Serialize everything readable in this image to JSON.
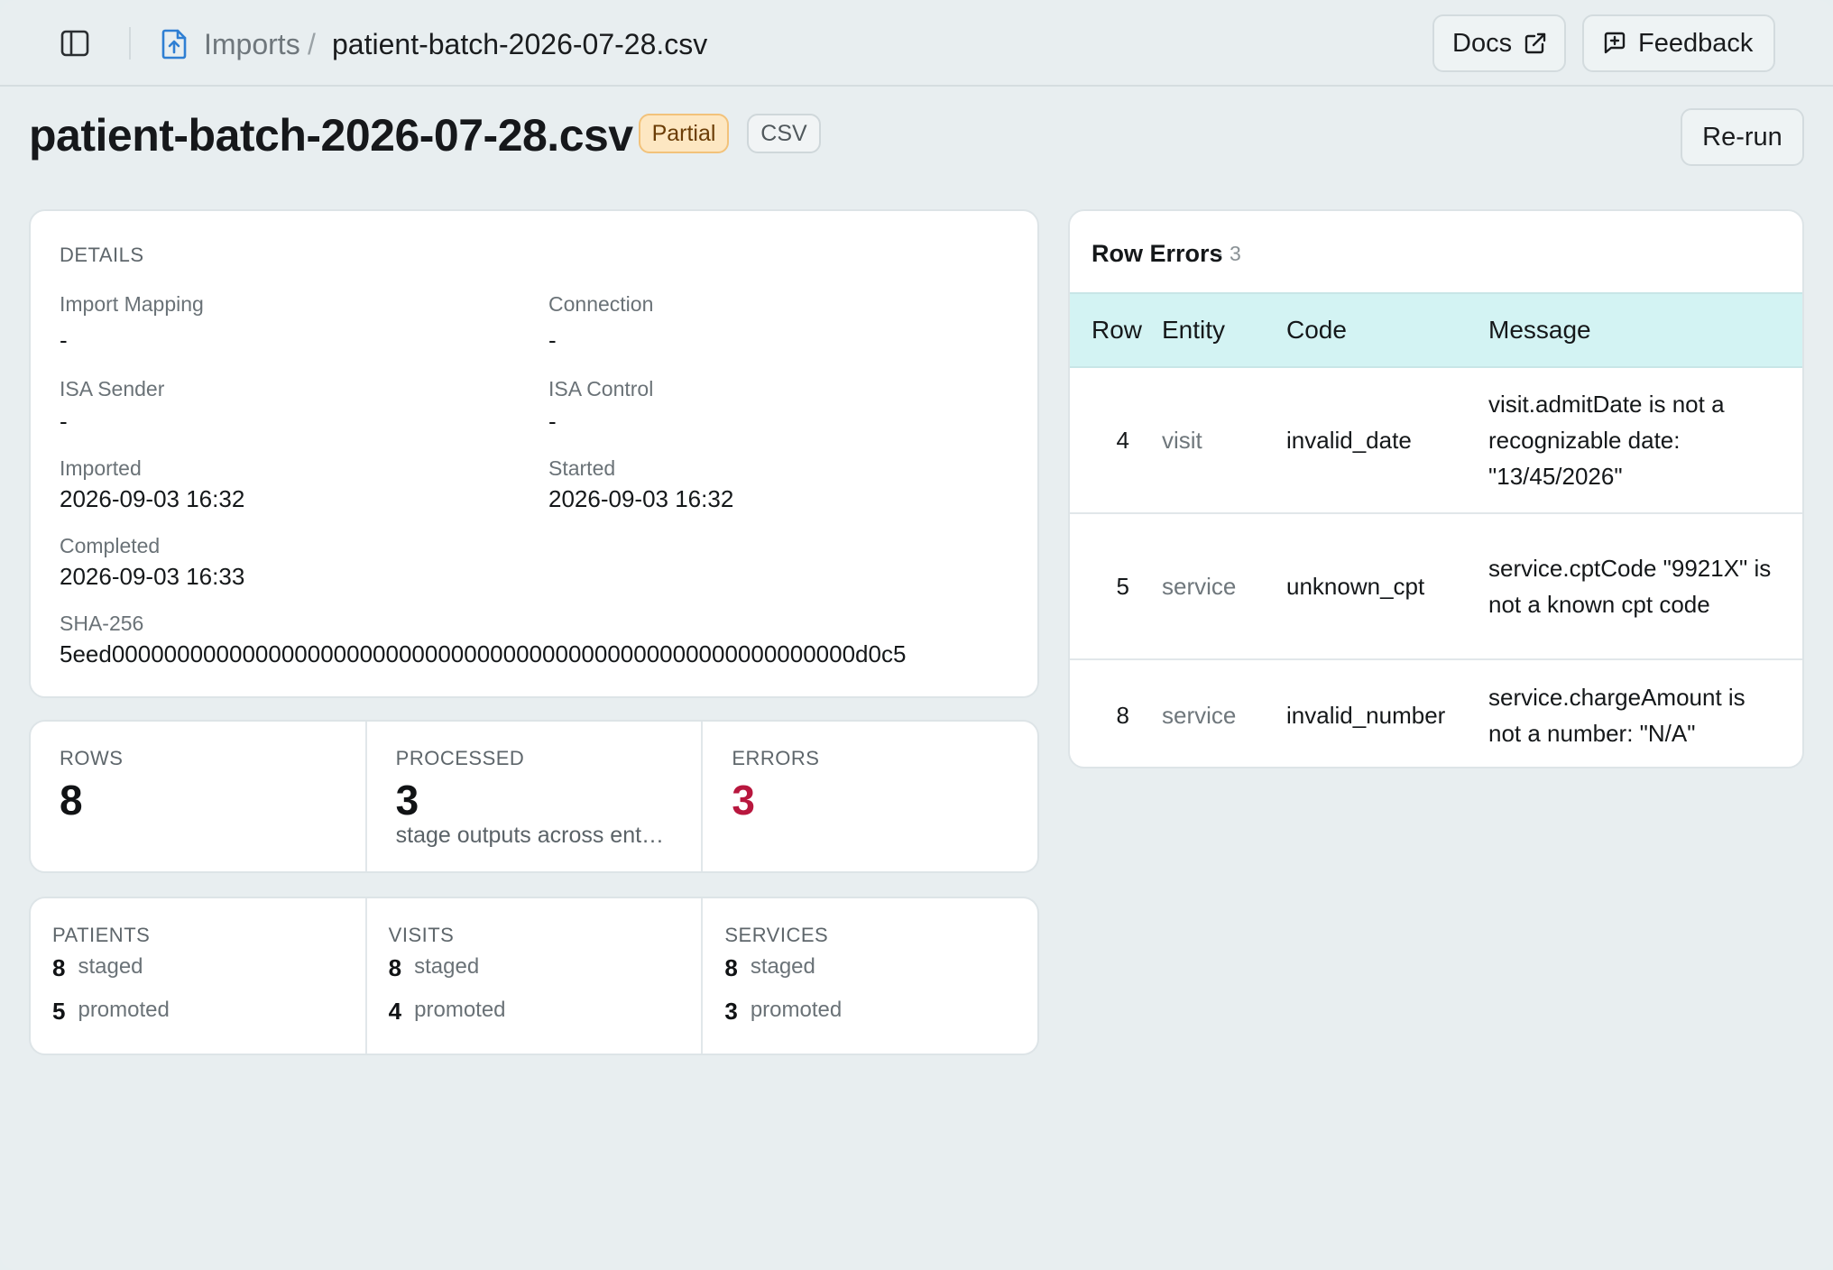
{
  "breadcrumb": {
    "root": "Imports",
    "separator": "/",
    "current": "patient-batch-2026-07-28.csv"
  },
  "topbar": {
    "docs_label": "Docs",
    "feedback_label": "Feedback"
  },
  "header": {
    "title": "patient-batch-2026-07-28.csv",
    "status_badge": "Partial",
    "type_badge": "CSV",
    "rerun_label": "Re-run"
  },
  "details": {
    "section_label": "DETAILS",
    "fields": [
      {
        "label": "Import Mapping",
        "value": "-"
      },
      {
        "label": "Connection",
        "value": "-"
      },
      {
        "label": "ISA Sender",
        "value": "-"
      },
      {
        "label": "ISA Control",
        "value": "-"
      },
      {
        "label": "Imported",
        "value": "2026-09-03 16:32"
      },
      {
        "label": "Started",
        "value": "2026-09-03 16:32"
      },
      {
        "label": "Completed",
        "value": "2026-09-03 16:33"
      }
    ],
    "sha_label": "SHA-256",
    "sha_value": "5eed000000000000000000000000000000000000000000000000000000000d0c5"
  },
  "stats": [
    {
      "label": "ROWS",
      "value": "8",
      "sub": ""
    },
    {
      "label": "PROCESSED",
      "value": "3",
      "sub": "stage outputs across ent…"
    },
    {
      "label": "ERRORS",
      "value": "3",
      "sub": ""
    }
  ],
  "entities": [
    {
      "label": "PATIENTS",
      "staged": "8",
      "staged_label": "staged",
      "promoted": "5",
      "promoted_label": "promoted"
    },
    {
      "label": "VISITS",
      "staged": "8",
      "staged_label": "staged",
      "promoted": "4",
      "promoted_label": "promoted"
    },
    {
      "label": "SERVICES",
      "staged": "8",
      "staged_label": "staged",
      "promoted": "3",
      "promoted_label": "promoted"
    }
  ],
  "row_errors": {
    "title": "Row Errors",
    "count": "· 3",
    "columns": [
      "Row",
      "Entity",
      "Code",
      "Message"
    ],
    "rows": [
      {
        "row": "4",
        "entity": "visit",
        "code": "invalid_date",
        "message": "visit.admitDate is not a recognizable date: \"13/45/2026\""
      },
      {
        "row": "5",
        "entity": "service",
        "code": "unknown_cpt",
        "message": "service.cptCode \"9921X\" is not a known cpt code"
      },
      {
        "row": "8",
        "entity": "service",
        "code": "invalid_number",
        "message": "service.chargeAmount is not a number: \"N/A\""
      }
    ]
  },
  "colors": {
    "background": "#e8eef0",
    "status_partial_bg": "#fde7c2",
    "errors_accent": "#b8173e",
    "table_header_bg": "#d3f3f3"
  },
  "icons": {
    "sidebar_toggle": "sidebar-toggle-icon",
    "breadcrumb": "file-upload-icon",
    "docs": "external-link-icon",
    "feedback": "message-plus-icon"
  }
}
